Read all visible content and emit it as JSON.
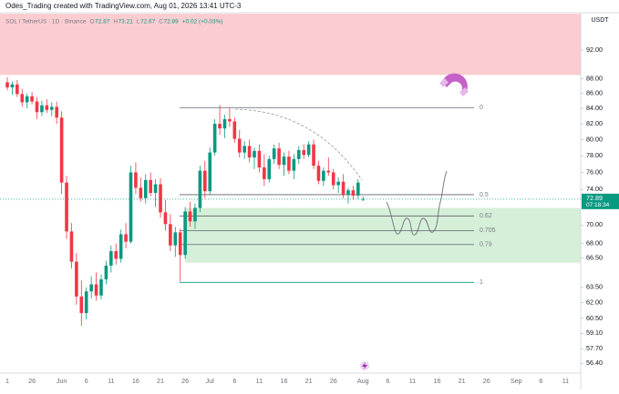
{
  "header": "Odes_Trading created with TradingView.com, Aug 01, 2026 13:41 UTC-3",
  "legend": {
    "symbol": "SOL / TetherUS · 1D · Binance",
    "open_label": "O",
    "open": 72.87,
    "high_label": "H",
    "high": 73.21,
    "low_label": "L",
    "low": 72.67,
    "close_label": "C",
    "close": 72.89,
    "change": "+0.02 (+0.03%)"
  },
  "currency": "USDT",
  "last_price": 72.89,
  "countdown": "07:18:34",
  "chart_data": {
    "type": "candlestick",
    "log_scale": true,
    "grid": false,
    "up_color": "#089981",
    "down_color": "#f23645",
    "ylim": [
      55.7,
      97.4
    ],
    "yticks": [
      {
        "value": 92,
        "label": "92.00"
      },
      {
        "value": 88,
        "label": "88.00"
      },
      {
        "value": 86,
        "label": "86.00"
      },
      {
        "value": 84,
        "label": "84.00"
      },
      {
        "value": 82,
        "label": "82.00"
      },
      {
        "value": 80,
        "label": "80.00"
      },
      {
        "value": 78,
        "label": "78.00"
      },
      {
        "value": 76,
        "label": "76.00"
      },
      {
        "value": 74,
        "label": "74.00"
      },
      {
        "value": 70,
        "label": "70.00"
      },
      {
        "value": 68,
        "label": "68.00"
      },
      {
        "value": 66.5,
        "label": "66.50"
      },
      {
        "value": 63.5,
        "label": "63.50"
      },
      {
        "value": 62,
        "label": "62.00"
      },
      {
        "value": 60.5,
        "label": "60.50"
      },
      {
        "value": 59.1,
        "label": "59.10"
      },
      {
        "value": 57.7,
        "label": "57.70"
      },
      {
        "value": 56.4,
        "label": "56.40"
      }
    ],
    "categories": [
      "1",
      null,
      null,
      null,
      null,
      "26",
      null,
      null,
      null,
      null,
      null,
      "Jun",
      null,
      null,
      null,
      null,
      "6",
      null,
      null,
      null,
      null,
      "11",
      null,
      null,
      null,
      null,
      "16",
      null,
      null,
      null,
      null,
      "21",
      null,
      null,
      null,
      null,
      "26",
      null,
      null,
      null,
      null,
      "Jul",
      null,
      null,
      null,
      null,
      "6",
      null,
      null,
      null,
      null,
      "11",
      null,
      null,
      null,
      null,
      "16",
      null,
      null,
      null,
      null,
      "21",
      null,
      null,
      null,
      null,
      "26",
      null,
      null,
      null,
      null,
      null,
      "Aug",
      null,
      null,
      null,
      null,
      "6",
      null,
      null,
      null,
      null,
      "11",
      null,
      null,
      null,
      null,
      "16",
      null,
      null,
      null,
      null,
      "21",
      null,
      null,
      null,
      null,
      "26",
      null,
      null,
      null,
      null,
      null,
      "Sep",
      null,
      null,
      null,
      null,
      "6",
      null,
      null,
      null,
      null,
      "11"
    ],
    "open": [
      87.5,
      86.8,
      87.2,
      85.9,
      84.8,
      85.6,
      84.9,
      83.5,
      84.4,
      83.8,
      84.2,
      82.8,
      74.8,
      69.3,
      66.1,
      62.6,
      61.0,
      63.1,
      63.8,
      62.7,
      64.3,
      65.7,
      67.2,
      66.4,
      69.0,
      68.2,
      76.0,
      74.2,
      73.0,
      75.1,
      73.6,
      74.6,
      71.4,
      70.1,
      67.8,
      69.2,
      66.8,
      71.5,
      70.4,
      71.9,
      76.2,
      73.8,
      78.4,
      82.0,
      81.4,
      82.6,
      82.3,
      80.1,
      78.4,
      79.2,
      77.8,
      78.6,
      76.6,
      75.2,
      77.6,
      78.9,
      76.9,
      77.9,
      76.2,
      77.6,
      78.7,
      78.1,
      79.4,
      76.8,
      75.0,
      76.2,
      76.0,
      74.5,
      74.9,
      73.4,
      73.9,
      73.3,
      72.87,
      null,
      null,
      null,
      null,
      null,
      null,
      null,
      null,
      null,
      null,
      null,
      null,
      null,
      null,
      null,
      null,
      null,
      null,
      null,
      null,
      null,
      null,
      null,
      null,
      null,
      null,
      null,
      null,
      null,
      null,
      null,
      null,
      null,
      null,
      null,
      null,
      null,
      null,
      null,
      null,
      null
    ],
    "high": [
      88.2,
      87.6,
      87.8,
      86.6,
      86.0,
      86.2,
      85.5,
      85.0,
      85.2,
      84.8,
      84.9,
      83.6,
      75.6,
      70.2,
      67.0,
      64.2,
      63.5,
      64.6,
      65.0,
      64.8,
      66.2,
      67.8,
      68.0,
      69.5,
      70.2,
      76.8,
      77.2,
      75.4,
      75.8,
      76.0,
      75.2,
      75.3,
      72.8,
      71.2,
      69.8,
      69.6,
      72.0,
      72.6,
      72.4,
      76.8,
      77.4,
      79.0,
      82.6,
      84.4,
      83.2,
      84.0,
      82.8,
      81.2,
      79.8,
      80.0,
      79.0,
      79.4,
      78.2,
      78.0,
      79.4,
      79.6,
      78.4,
      78.6,
      78.2,
      79.2,
      79.4,
      79.8,
      80.0,
      77.4,
      76.6,
      77.8,
      76.4,
      75.4,
      75.8,
      74.2,
      74.4,
      75.2,
      73.21,
      null,
      null,
      null,
      null,
      null,
      null,
      null,
      null,
      null,
      null,
      null,
      null,
      null,
      null,
      null,
      null,
      null,
      null,
      null,
      null,
      null,
      null,
      null,
      null,
      null,
      null,
      null,
      null,
      null,
      null,
      null,
      null,
      null,
      null,
      null,
      null,
      null,
      null,
      null,
      null,
      null
    ],
    "low": [
      86.4,
      85.8,
      85.5,
      84.2,
      84.0,
      84.5,
      82.6,
      83.0,
      83.4,
      83.0,
      82.0,
      73.5,
      68.5,
      65.4,
      61.8,
      59.8,
      60.4,
      62.4,
      62.2,
      62.3,
      63.8,
      65.0,
      65.8,
      66.0,
      67.5,
      68.0,
      73.5,
      72.6,
      72.4,
      73.2,
      72.0,
      70.8,
      69.4,
      67.2,
      66.6,
      64.1,
      66.4,
      69.8,
      69.6,
      71.4,
      73.0,
      73.4,
      78.0,
      80.6,
      80.2,
      81.6,
      79.6,
      77.8,
      77.6,
      77.2,
      76.4,
      76.0,
      74.4,
      74.8,
      77.0,
      76.4,
      75.6,
      75.8,
      75.2,
      77.0,
      77.6,
      77.8,
      76.4,
      74.6,
      74.4,
      75.6,
      74.0,
      73.6,
      73.0,
      72.4,
      72.8,
      72.9,
      72.67,
      null,
      null,
      null,
      null,
      null,
      null,
      null,
      null,
      null,
      null,
      null,
      null,
      null,
      null,
      null,
      null,
      null,
      null,
      null,
      null,
      null,
      null,
      null,
      null,
      null,
      null,
      null,
      null,
      null,
      null,
      null,
      null,
      null,
      null,
      null,
      null,
      null,
      null,
      null,
      null,
      null
    ],
    "close": [
      86.8,
      87.2,
      85.9,
      84.8,
      85.6,
      84.9,
      83.5,
      84.4,
      83.8,
      84.2,
      82.8,
      74.8,
      69.3,
      66.1,
      62.6,
      61.0,
      63.1,
      63.8,
      62.7,
      64.3,
      65.7,
      67.2,
      66.4,
      69.0,
      68.2,
      76.0,
      74.2,
      73.0,
      75.1,
      73.6,
      74.6,
      71.4,
      70.1,
      67.8,
      69.2,
      66.8,
      71.5,
      70.4,
      71.9,
      76.2,
      73.8,
      78.4,
      82.0,
      81.4,
      82.6,
      82.3,
      80.1,
      78.4,
      79.2,
      77.8,
      78.6,
      76.6,
      75.2,
      77.6,
      78.9,
      76.9,
      77.9,
      76.2,
      77.6,
      78.7,
      78.1,
      79.4,
      76.8,
      75.0,
      76.2,
      76.0,
      74.5,
      74.9,
      73.4,
      73.9,
      73.3,
      74.8,
      72.89,
      null,
      null,
      null,
      null,
      null,
      null,
      null,
      null,
      null,
      null,
      null,
      null,
      null,
      null,
      null,
      null,
      null,
      null,
      null,
      null,
      null,
      null,
      null,
      null,
      null,
      null,
      null,
      null,
      null,
      null,
      null,
      null,
      null,
      null,
      null,
      null,
      null,
      null,
      null,
      null,
      null
    ],
    "fib_levels": [
      {
        "level": 0,
        "price": 84.1
      },
      {
        "level": 0.5,
        "price": 73.4
      },
      {
        "level": 0.62,
        "price": 71.0
      },
      {
        "level": 0.705,
        "price": 69.4
      },
      {
        "level": 0.79,
        "price": 67.9
      },
      {
        "level": 1,
        "price": 64.0
      }
    ],
    "zones": [
      {
        "top": 97.4,
        "bottom": 88.5,
        "color": "#fbcdd1"
      },
      {
        "top": 71.9,
        "bottom": 66.0,
        "color": "#d6efd8"
      }
    ]
  }
}
